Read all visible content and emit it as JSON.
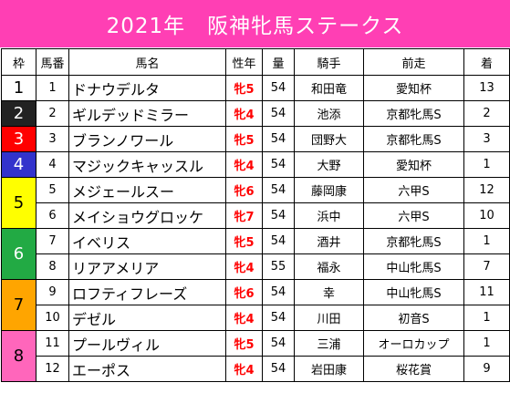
{
  "title": "2021年　阪神牝馬ステークス",
  "headers": [
    "枠",
    "馬番",
    "馬名",
    "性年",
    "量",
    "騎手",
    "前走",
    "着"
  ],
  "gates": [
    {
      "gate": "1",
      "bg": "#ffffff",
      "fg": "#000000",
      "span": 1
    },
    {
      "gate": "2",
      "bg": "#222222",
      "fg": "#ffffff",
      "span": 1
    },
    {
      "gate": "3",
      "bg": "#ff0000",
      "fg": "#ffffff",
      "span": 1
    },
    {
      "gate": "4",
      "bg": "#3333cc",
      "fg": "#ffffff",
      "span": 1
    },
    {
      "gate": "5",
      "bg": "#ffff00",
      "fg": "#000000",
      "span": 2
    },
    {
      "gate": "6",
      "bg": "#22aa44",
      "fg": "#ffffff",
      "span": 2
    },
    {
      "gate": "7",
      "bg": "#ffa500",
      "fg": "#000000",
      "span": 2
    },
    {
      "gate": "8",
      "bg": "#ff66bb",
      "fg": "#000000",
      "span": 2
    }
  ],
  "rows": [
    {
      "num": "1",
      "name": "ドナウデルタ",
      "sex": "牝5",
      "weight": "54",
      "jockey": "和田竜",
      "prev": "愛知杯",
      "rank": "13"
    },
    {
      "num": "2",
      "name": "ギルデッドミラー",
      "sex": "牝4",
      "weight": "54",
      "jockey": "池添",
      "prev": "京都牝馬S",
      "rank": "2"
    },
    {
      "num": "3",
      "name": "ブランノワール",
      "sex": "牝5",
      "weight": "54",
      "jockey": "団野大",
      "prev": "京都牝馬S",
      "rank": "3"
    },
    {
      "num": "4",
      "name": "マジックキャッスル",
      "sex": "牝4",
      "weight": "54",
      "jockey": "大野",
      "prev": "愛知杯",
      "rank": "1"
    },
    {
      "num": "5",
      "name": "メジェールスー",
      "sex": "牝6",
      "weight": "54",
      "jockey": "藤岡康",
      "prev": "六甲S",
      "rank": "12"
    },
    {
      "num": "6",
      "name": "メイショウグロッケ",
      "sex": "牝7",
      "weight": "54",
      "jockey": "浜中",
      "prev": "六甲S",
      "rank": "10"
    },
    {
      "num": "7",
      "name": "イベリス",
      "sex": "牝5",
      "weight": "54",
      "jockey": "酒井",
      "prev": "京都牝馬S",
      "rank": "1"
    },
    {
      "num": "8",
      "name": "リアアメリア",
      "sex": "牝4",
      "weight": "55",
      "jockey": "福永",
      "prev": "中山牝馬S",
      "rank": "7"
    },
    {
      "num": "9",
      "name": "ロフティフレーズ",
      "sex": "牝6",
      "weight": "54",
      "jockey": "幸",
      "prev": "中山牝馬S",
      "rank": "11"
    },
    {
      "num": "10",
      "name": "デゼル",
      "sex": "牝4",
      "weight": "54",
      "jockey": "川田",
      "prev": "初音S",
      "rank": "1"
    },
    {
      "num": "11",
      "name": "プールヴィル",
      "sex": "牝5",
      "weight": "54",
      "jockey": "三浦",
      "prev": "オーロカップ",
      "rank": "1"
    },
    {
      "num": "12",
      "name": "エーポス",
      "sex": "牝4",
      "weight": "54",
      "jockey": "岩田康",
      "prev": "桜花賞",
      "rank": "9"
    }
  ]
}
